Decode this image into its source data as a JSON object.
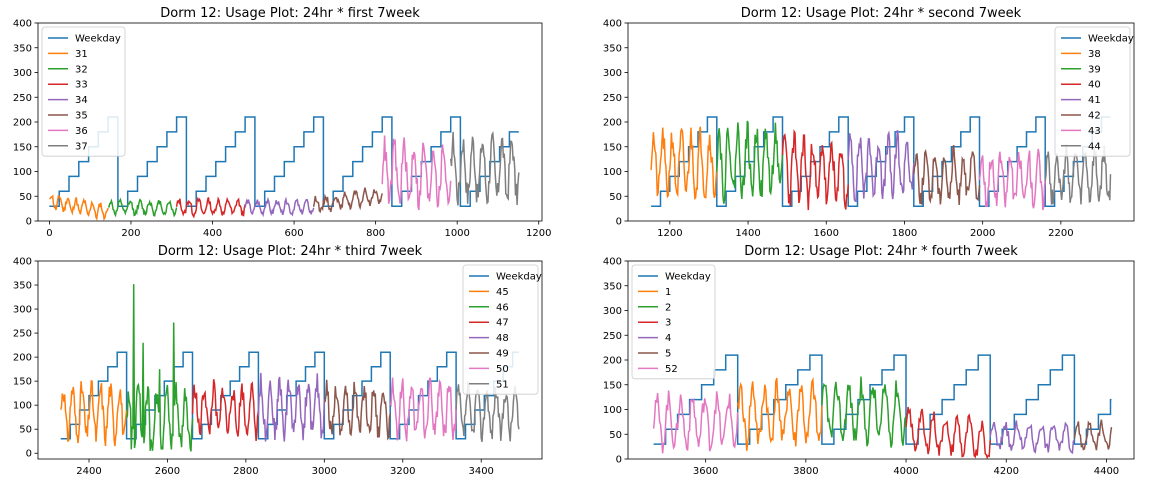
{
  "chart_data": [
    {
      "type": "line",
      "title": "Dorm 12: Usage Plot: 24hr * first 7week",
      "xlim": [
        -28,
        1208
      ],
      "ylim": [
        0,
        400
      ],
      "xticks": [
        0,
        200,
        400,
        600,
        800,
        1000,
        1200
      ],
      "yticks": [
        0,
        50,
        100,
        150,
        200,
        250,
        300,
        350,
        400
      ],
      "legend": "upper-left",
      "weekday": {
        "name": "Weekday",
        "start": 0,
        "end": 1151,
        "period": 168,
        "levels": [
          30,
          60,
          90,
          120,
          150,
          180,
          210
        ]
      },
      "series": [
        {
          "name": "31",
          "x0": 0,
          "x1": 144,
          "base": 40,
          "amp": 14,
          "cycle": 20,
          "trend": -22,
          "seed": 11
        },
        {
          "name": "32",
          "x0": 144,
          "x1": 312,
          "base": 27,
          "amp": 12,
          "cycle": 24,
          "trend": 0,
          "seed": 12
        },
        {
          "name": "33",
          "x0": 312,
          "x1": 480,
          "base": 28,
          "amp": 14,
          "cycle": 24,
          "trend": 0,
          "seed": 13
        },
        {
          "name": "34",
          "x0": 480,
          "x1": 648,
          "base": 28,
          "amp": 12,
          "cycle": 24,
          "trend": 0,
          "seed": 14
        },
        {
          "name": "35",
          "x0": 648,
          "x1": 816,
          "base": 32,
          "amp": 14,
          "cycle": 24,
          "trend": 20,
          "seed": 15
        },
        {
          "name": "36",
          "x0": 816,
          "x1": 984,
          "base": 95,
          "amp": 55,
          "cycle": 24,
          "trend": 0,
          "seed": 16
        },
        {
          "name": "37",
          "x0": 984,
          "x1": 1151,
          "base": 105,
          "amp": 55,
          "cycle": 24,
          "trend": 0,
          "seed": 17
        }
      ]
    },
    {
      "type": "line",
      "title": "Dorm 12: Usage Plot: 24hr * second 7week",
      "xlim": [
        1093,
        2387
      ],
      "ylim": [
        0,
        400
      ],
      "xticks": [
        1200,
        1400,
        1600,
        1800,
        2000,
        2200
      ],
      "yticks": [
        0,
        50,
        100,
        150,
        200,
        250,
        300,
        350,
        400
      ],
      "legend": "upper-right",
      "weekday": {
        "name": "Weekday",
        "start": 1152,
        "end": 2327,
        "period": 168,
        "levels": [
          30,
          60,
          90,
          120,
          150,
          180,
          210
        ]
      },
      "series": [
        {
          "name": "38",
          "x0": 1152,
          "x1": 1320,
          "base": 115,
          "amp": 55,
          "cycle": 24,
          "trend": 0,
          "seed": 21
        },
        {
          "name": "39",
          "x0": 1320,
          "x1": 1488,
          "base": 120,
          "amp": 60,
          "cycle": 24,
          "trend": 0,
          "seed": 22
        },
        {
          "name": "40",
          "x0": 1488,
          "x1": 1656,
          "base": 110,
          "amp": 60,
          "cycle": 24,
          "trend": -20,
          "seed": 23
        },
        {
          "name": "41",
          "x0": 1656,
          "x1": 1824,
          "base": 110,
          "amp": 55,
          "cycle": 24,
          "trend": 0,
          "seed": 24
        },
        {
          "name": "42",
          "x0": 1824,
          "x1": 1992,
          "base": 90,
          "amp": 45,
          "cycle": 24,
          "trend": 0,
          "seed": 25
        },
        {
          "name": "43",
          "x0": 1992,
          "x1": 2160,
          "base": 85,
          "amp": 45,
          "cycle": 24,
          "trend": 0,
          "seed": 26
        },
        {
          "name": "44",
          "x0": 2160,
          "x1": 2327,
          "base": 90,
          "amp": 45,
          "cycle": 24,
          "trend": 0,
          "seed": 27
        }
      ]
    },
    {
      "type": "line",
      "title": "Dorm 12: Usage Plot: 24hr * third 7week",
      "xlim": [
        2270,
        3555
      ],
      "ylim": [
        -12,
        400
      ],
      "xticks": [
        2400,
        2600,
        2800,
        3000,
        3200,
        3400
      ],
      "yticks": [
        0,
        50,
        100,
        150,
        200,
        250,
        300,
        350,
        400
      ],
      "legend": "upper-right",
      "weekday": {
        "name": "Weekday",
        "start": 2328,
        "end": 3496,
        "period": 168,
        "levels": [
          30,
          60,
          90,
          120,
          150,
          180,
          210
        ]
      },
      "series": [
        {
          "name": "45",
          "x0": 2328,
          "x1": 2496,
          "base": 85,
          "amp": 50,
          "cycle": 24,
          "trend": 0,
          "seed": 31
        },
        {
          "name": "46",
          "x0": 2496,
          "x1": 2664,
          "base": 75,
          "amp": 55,
          "cycle": 24,
          "trend": 0,
          "seed": 32,
          "spikes": [
            [
              2514,
              352
            ],
            [
              2508,
              8
            ],
            [
              2538,
              230
            ],
            [
              2556,
              5
            ],
            [
              2616,
              272
            ],
            [
              2580,
              175
            ]
          ]
        },
        {
          "name": "47",
          "x0": 2664,
          "x1": 2832,
          "base": 90,
          "amp": 45,
          "cycle": 24,
          "trend": 0,
          "seed": 33
        },
        {
          "name": "48",
          "x0": 2832,
          "x1": 3000,
          "base": 95,
          "amp": 50,
          "cycle": 24,
          "trend": 0,
          "seed": 34
        },
        {
          "name": "49",
          "x0": 3000,
          "x1": 3168,
          "base": 90,
          "amp": 45,
          "cycle": 24,
          "trend": 0,
          "seed": 35
        },
        {
          "name": "50",
          "x0": 3168,
          "x1": 3336,
          "base": 90,
          "amp": 50,
          "cycle": 24,
          "trend": 0,
          "seed": 36
        },
        {
          "name": "51",
          "x0": 3336,
          "x1": 3496,
          "base": 85,
          "amp": 45,
          "cycle": 24,
          "trend": 0,
          "seed": 37
        }
      ]
    },
    {
      "type": "line",
      "title": "Dorm 12: Usage Plot: 24hr * fourth 7week",
      "xlim": [
        3445,
        4455
      ],
      "ylim": [
        0,
        400
      ],
      "xticks": [
        3600,
        3800,
        4000,
        4200,
        4400
      ],
      "yticks": [
        0,
        50,
        100,
        150,
        200,
        250,
        300,
        350,
        400
      ],
      "legend": "upper-left",
      "weekday": {
        "name": "Weekday",
        "start": 3496,
        "end": 4410,
        "period": 168,
        "levels": [
          30,
          60,
          90,
          120,
          150,
          180,
          210
        ],
        "tail": 90
      },
      "series": [
        {
          "name": "1",
          "x0": 3664,
          "x1": 3832,
          "base": 90,
          "amp": 55,
          "cycle": 24,
          "trend": 0,
          "seed": 41
        },
        {
          "name": "2",
          "x0": 3832,
          "x1": 4000,
          "base": 95,
          "amp": 50,
          "cycle": 24,
          "trend": 0,
          "seed": 42
        },
        {
          "name": "3",
          "x0": 4000,
          "x1": 4168,
          "base": 60,
          "amp": 35,
          "cycle": 24,
          "trend": -25,
          "seed": 43
        },
        {
          "name": "4",
          "x0": 4168,
          "x1": 4336,
          "base": 45,
          "amp": 25,
          "cycle": 24,
          "trend": 0,
          "seed": 44
        },
        {
          "name": "5",
          "x0": 4336,
          "x1": 4410,
          "base": 45,
          "amp": 25,
          "cycle": 24,
          "trend": 0,
          "seed": 45
        },
        {
          "name": "52",
          "x0": 3496,
          "x1": 3664,
          "base": 75,
          "amp": 45,
          "cycle": 24,
          "trend": 0,
          "seed": 46
        }
      ]
    }
  ],
  "colors": [
    "#1f77b4",
    "#ff7f0e",
    "#2ca02c",
    "#d62728",
    "#9467bd",
    "#8c564b",
    "#e377c2",
    "#7f7f7f"
  ]
}
